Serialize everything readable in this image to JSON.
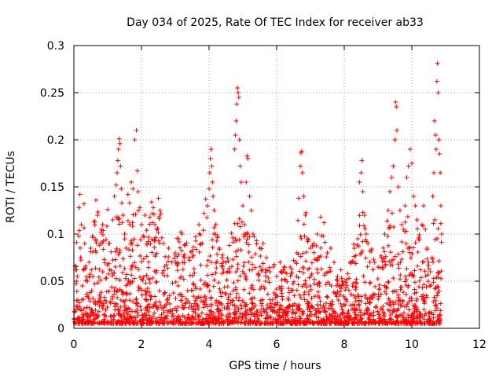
{
  "chart_data": {
    "type": "scatter",
    "title": "Day 034 of 2025, Rate Of TEC Index for receiver ab33",
    "xlabel": "GPS time / hours",
    "ylabel": "ROTI / TECUs",
    "xlim": [
      0,
      12
    ],
    "ylim": [
      0,
      0.3
    ],
    "x_ticks": [
      0,
      2,
      4,
      6,
      8,
      10,
      12
    ],
    "x_tick_labels": [
      "0",
      "2",
      "4",
      "6",
      "8",
      "10",
      "12"
    ],
    "y_ticks": [
      0,
      0.05,
      0.1,
      0.15,
      0.2,
      0.25,
      0.3
    ],
    "y_tick_labels": [
      "0",
      "0.05",
      "0.1",
      "0.15",
      "0.2",
      "0.25",
      "0.3"
    ],
    "grid": true,
    "marker": "plus",
    "color": "#ff0000",
    "series": [
      {
        "name": "ROTI",
        "points": [
          [
            0.05,
            0.062
          ],
          [
            0.08,
            0.091
          ],
          [
            0.1,
            0.055
          ],
          [
            0.12,
            0.03
          ],
          [
            0.15,
            0.128
          ],
          [
            0.18,
            0.142
          ],
          [
            0.2,
            0.075
          ],
          [
            0.22,
            0.11
          ],
          [
            0.25,
            0.045
          ],
          [
            0.3,
            0.132
          ],
          [
            0.32,
            0.09
          ],
          [
            0.35,
            0.066
          ],
          [
            0.4,
            0.05
          ],
          [
            0.45,
            0.07
          ],
          [
            0.5,
            0.085
          ],
          [
            0.55,
            0.098
          ],
          [
            0.6,
            0.113
          ],
          [
            0.65,
            0.136
          ],
          [
            0.7,
            0.12
          ],
          [
            0.75,
            0.088
          ],
          [
            0.8,
            0.102
          ],
          [
            0.85,
            0.11
          ],
          [
            0.9,
            0.073
          ],
          [
            0.95,
            0.094
          ],
          [
            1.0,
            0.126
          ],
          [
            1.05,
            0.09
          ],
          [
            1.1,
            0.081
          ],
          [
            1.15,
            0.115
          ],
          [
            1.2,
            0.14
          ],
          [
            1.25,
            0.152
          ],
          [
            1.28,
            0.165
          ],
          [
            1.3,
            0.178
          ],
          [
            1.32,
            0.19
          ],
          [
            1.34,
            0.201
          ],
          [
            1.36,
            0.196
          ],
          [
            1.38,
            0.172
          ],
          [
            1.4,
            0.148
          ],
          [
            1.42,
            0.133
          ],
          [
            1.45,
            0.12
          ],
          [
            1.5,
            0.1
          ],
          [
            1.55,
            0.085
          ],
          [
            1.6,
            0.142
          ],
          [
            1.65,
            0.133
          ],
          [
            1.7,
            0.155
          ],
          [
            1.75,
            0.148
          ],
          [
            1.8,
            0.2
          ],
          [
            1.85,
            0.21
          ],
          [
            1.88,
            0.167
          ],
          [
            1.9,
            0.145
          ],
          [
            1.95,
            0.128
          ],
          [
            2.0,
            0.11
          ],
          [
            2.05,
            0.098
          ],
          [
            2.1,
            0.12
          ],
          [
            2.15,
            0.104
          ],
          [
            2.2,
            0.092
          ],
          [
            2.25,
            0.118
          ],
          [
            2.3,
            0.134
          ],
          [
            2.35,
            0.128
          ],
          [
            2.4,
            0.11
          ],
          [
            2.45,
            0.105
          ],
          [
            2.5,
            0.138
          ],
          [
            2.55,
            0.125
          ],
          [
            2.6,
            0.096
          ],
          [
            2.65,
            0.09
          ],
          [
            2.7,
            0.076
          ],
          [
            2.8,
            0.085
          ],
          [
            2.9,
            0.07
          ],
          [
            3.0,
            0.08
          ],
          [
            3.1,
            0.095
          ],
          [
            3.2,
            0.1
          ],
          [
            3.3,
            0.088
          ],
          [
            3.4,
            0.075
          ],
          [
            3.5,
            0.082
          ],
          [
            3.6,
            0.097
          ],
          [
            3.7,
            0.11
          ],
          [
            3.8,
            0.09
          ],
          [
            3.85,
            0.122
          ],
          [
            3.9,
            0.137
          ],
          [
            3.95,
            0.13
          ],
          [
            4.0,
            0.148
          ],
          [
            4.02,
            0.165
          ],
          [
            4.04,
            0.18
          ],
          [
            4.06,
            0.19
          ],
          [
            4.08,
            0.172
          ],
          [
            4.1,
            0.155
          ],
          [
            4.12,
            0.14
          ],
          [
            4.15,
            0.125
          ],
          [
            4.2,
            0.11
          ],
          [
            4.25,
            0.098
          ],
          [
            4.3,
            0.085
          ],
          [
            4.4,
            0.078
          ],
          [
            4.5,
            0.07
          ],
          [
            4.6,
            0.088
          ],
          [
            4.7,
            0.096
          ],
          [
            4.75,
            0.19
          ],
          [
            4.78,
            0.205
          ],
          [
            4.8,
            0.22
          ],
          [
            4.82,
            0.238
          ],
          [
            4.84,
            0.255
          ],
          [
            4.86,
            0.25
          ],
          [
            4.88,
            0.245
          ],
          [
            4.9,
            0.2
          ],
          [
            4.92,
            0.172
          ],
          [
            4.95,
            0.155
          ],
          [
            5.0,
            0.13
          ],
          [
            5.05,
            0.11
          ],
          [
            5.1,
            0.155
          ],
          [
            5.12,
            0.183
          ],
          [
            5.15,
            0.18
          ],
          [
            5.2,
            0.14
          ],
          [
            5.25,
            0.125
          ],
          [
            5.3,
            0.1
          ],
          [
            5.4,
            0.093
          ],
          [
            5.5,
            0.085
          ],
          [
            5.6,
            0.09
          ],
          [
            5.7,
            0.075
          ],
          [
            5.8,
            0.06
          ],
          [
            5.9,
            0.065
          ],
          [
            6.0,
            0.055
          ],
          [
            6.1,
            0.07
          ],
          [
            6.2,
            0.062
          ],
          [
            6.3,
            0.058
          ],
          [
            6.4,
            0.065
          ],
          [
            6.5,
            0.072
          ],
          [
            6.6,
            0.08
          ],
          [
            6.65,
            0.138
          ],
          [
            6.7,
            0.172
          ],
          [
            6.72,
            0.186
          ],
          [
            6.74,
            0.188
          ],
          [
            6.76,
            0.165
          ],
          [
            6.8,
            0.14
          ],
          [
            6.85,
            0.12
          ],
          [
            6.9,
            0.095
          ],
          [
            7.0,
            0.085
          ],
          [
            7.1,
            0.09
          ],
          [
            7.2,
            0.1
          ],
          [
            7.3,
            0.118
          ],
          [
            7.4,
            0.112
          ],
          [
            7.5,
            0.08
          ],
          [
            7.6,
            0.085
          ],
          [
            7.7,
            0.07
          ],
          [
            7.8,
            0.055
          ],
          [
            7.9,
            0.062
          ],
          [
            8.0,
            0.05
          ],
          [
            8.1,
            0.058
          ],
          [
            8.2,
            0.07
          ],
          [
            8.3,
            0.085
          ],
          [
            8.4,
            0.095
          ],
          [
            8.45,
            0.155
          ],
          [
            8.5,
            0.165
          ],
          [
            8.52,
            0.178
          ],
          [
            8.55,
            0.145
          ],
          [
            8.6,
            0.12
          ],
          [
            8.65,
            0.1
          ],
          [
            8.7,
            0.09
          ],
          [
            8.8,
            0.082
          ],
          [
            8.9,
            0.07
          ],
          [
            9.0,
            0.065
          ],
          [
            9.1,
            0.075
          ],
          [
            9.2,
            0.1
          ],
          [
            9.3,
            0.125
          ],
          [
            9.35,
            0.145
          ],
          [
            9.4,
            0.16
          ],
          [
            9.45,
            0.172
          ],
          [
            9.5,
            0.2
          ],
          [
            9.52,
            0.24
          ],
          [
            9.54,
            0.235
          ],
          [
            9.56,
            0.21
          ],
          [
            9.6,
            0.15
          ],
          [
            9.65,
            0.125
          ],
          [
            9.7,
            0.11
          ],
          [
            9.75,
            0.105
          ],
          [
            9.8,
            0.13
          ],
          [
            9.85,
            0.16
          ],
          [
            9.9,
            0.172
          ],
          [
            9.95,
            0.19
          ],
          [
            10.0,
            0.175
          ],
          [
            10.05,
            0.14
          ],
          [
            10.1,
            0.13
          ],
          [
            10.15,
            0.115
          ],
          [
            10.2,
            0.095
          ],
          [
            10.3,
            0.11
          ],
          [
            10.35,
            0.13
          ],
          [
            10.4,
            0.105
          ],
          [
            10.45,
            0.085
          ],
          [
            10.5,
            0.07
          ],
          [
            10.55,
            0.06
          ],
          [
            10.6,
            0.075
          ],
          [
            10.62,
            0.14
          ],
          [
            10.65,
            0.165
          ],
          [
            10.67,
            0.22
          ],
          [
            10.7,
            0.205
          ],
          [
            10.72,
            0.19
          ],
          [
            10.74,
            0.262
          ],
          [
            10.76,
            0.281
          ],
          [
            10.78,
            0.25
          ],
          [
            10.8,
            0.2
          ],
          [
            10.82,
            0.185
          ],
          [
            10.84,
            0.165
          ],
          [
            10.86,
            0.13
          ],
          [
            10.88,
            0.1
          ]
        ]
      }
    ]
  }
}
